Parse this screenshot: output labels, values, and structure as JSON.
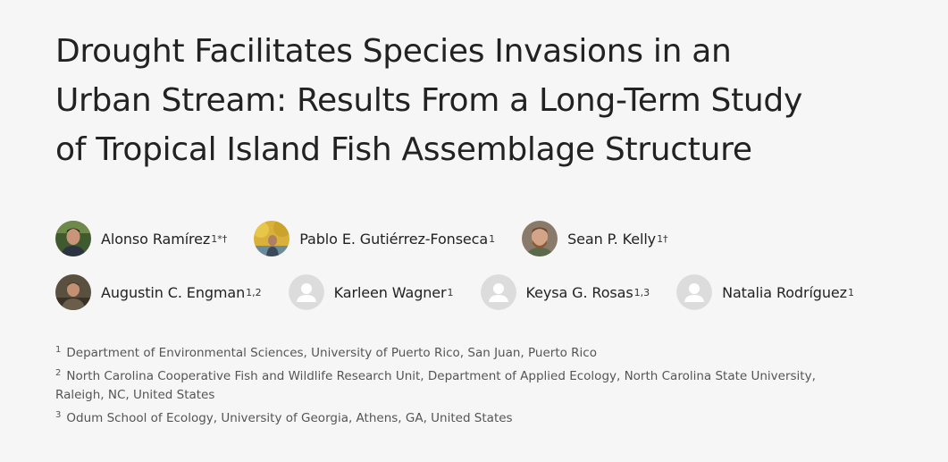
{
  "title_lines": [
    "Drought Facilitates Species Invasions in an",
    "Urban Stream: Results From a Long-Term Study",
    "of Tropical Island Fish Assemblage Structure"
  ],
  "authors": [
    {
      "name": "Alonso Ramírez",
      "sup": "1*†",
      "avatar": "photo"
    },
    {
      "name": "Pablo E. Gutiérrez-Fonseca",
      "sup": "1",
      "avatar": "photo"
    },
    {
      "name": "Sean P. Kelly",
      "sup": "1†",
      "avatar": "photo"
    },
    {
      "name": "Augustin C. Engman",
      "sup": "1,2",
      "avatar": "photo"
    },
    {
      "name": "Karleen Wagner",
      "sup": "1",
      "avatar": "placeholder-person-icon"
    },
    {
      "name": "Keysa G. Rosas",
      "sup": "1,3",
      "avatar": "placeholder-person-icon"
    },
    {
      "name": "Natalia Rodríguez",
      "sup": "1",
      "avatar": "placeholder-person-icon"
    }
  ],
  "affiliations": [
    {
      "num": "1",
      "text": "Department of Environmental Sciences, University of Puerto Rico, San Juan, Puerto Rico"
    },
    {
      "num": "2",
      "text": "North Carolina Cooperative Fish and Wildlife Research Unit, Department of Applied Ecology, North Carolina State University,",
      "text2": "Raleigh, NC, United States"
    },
    {
      "num": "3",
      "text": "Odum School of Ecology, University of Georgia, Athens, GA, United States"
    }
  ],
  "colors": {
    "background": "#f6f6f6",
    "title_text": "#222222",
    "affiliation_text": "#555555",
    "placeholder_avatar": "#dcdcdc"
  }
}
